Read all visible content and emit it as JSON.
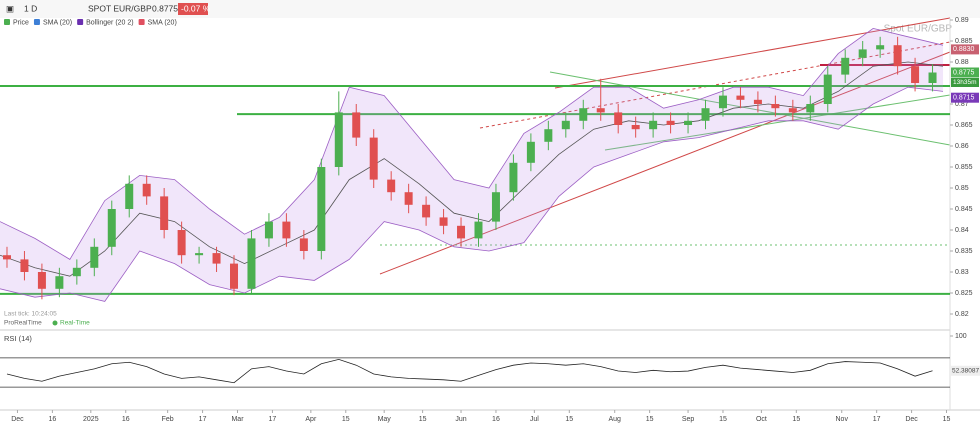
{
  "chart_data": {
    "type": "candlestick",
    "toolbar": {
      "interval": "1 D",
      "symbol": "SPOT EUR/GBP",
      "price": "0.8775",
      "change": "-0.07 %"
    },
    "watermark": "Spot EUR/GBP",
    "last_tick": "Last tick: 10:24:05",
    "source": "ProRealTime",
    "feed": "Real-Time",
    "legend": [
      {
        "name": "Price",
        "color": "#4caf50"
      },
      {
        "name": "SMA (20)",
        "color": "#3d7fd6"
      },
      {
        "name": "Bollinger (20 2)",
        "color": "#6a2fb0"
      },
      {
        "name": "SMA (20)",
        "color": "#e05060"
      }
    ],
    "xlim": [
      0,
      272
    ],
    "xticks": [
      {
        "value": 5,
        "label": "Dec"
      },
      {
        "value": 15,
        "label": "16"
      },
      {
        "value": 26,
        "label": "2025"
      },
      {
        "value": 36,
        "label": "16"
      },
      {
        "value": 48,
        "label": "Feb"
      },
      {
        "value": 58,
        "label": "17"
      },
      {
        "value": 68,
        "label": "Mar"
      },
      {
        "value": 78,
        "label": "17"
      },
      {
        "value": 89,
        "label": "Apr"
      },
      {
        "value": 99,
        "label": "15"
      },
      {
        "value": 110,
        "label": "May"
      },
      {
        "value": 121,
        "label": "15"
      },
      {
        "value": 132,
        "label": "Jun"
      },
      {
        "value": 142,
        "label": "16"
      },
      {
        "value": 153,
        "label": "Jul"
      },
      {
        "value": 163,
        "label": "15"
      },
      {
        "value": 176,
        "label": "Aug"
      },
      {
        "value": 186,
        "label": "15"
      },
      {
        "value": 197,
        "label": "Sep"
      },
      {
        "value": 207,
        "label": "15"
      },
      {
        "value": 218,
        "label": "Oct"
      },
      {
        "value": 228,
        "label": "15"
      },
      {
        "value": 241,
        "label": "Nov"
      },
      {
        "value": 251,
        "label": "17"
      },
      {
        "value": 261,
        "label": "Dec"
      },
      {
        "value": 271,
        "label": "15"
      }
    ],
    "ylim": [
      0.82,
      0.89
    ],
    "yticks": [
      0.89,
      0.885,
      0.88,
      0.87,
      0.865,
      0.86,
      0.855,
      0.85,
      0.845,
      0.84,
      0.835,
      0.83,
      0.825,
      0.82
    ],
    "series": [
      {
        "name": "Price",
        "color_up": "#4caf50",
        "color_down": "#e05050",
        "x": [
          2,
          7,
          12,
          17,
          22,
          27,
          32,
          37,
          42,
          47,
          52,
          57,
          62,
          67,
          72,
          77,
          82,
          87,
          92,
          97,
          102,
          107,
          112,
          117,
          122,
          127,
          132,
          137,
          142,
          147,
          152,
          157,
          162,
          167,
          172,
          177,
          182,
          187,
          192,
          197,
          202,
          207,
          212,
          217,
          222,
          227,
          232,
          237,
          242,
          247,
          252,
          257,
          262,
          267
        ],
        "open": [
          0.834,
          0.833,
          0.83,
          0.826,
          0.829,
          0.831,
          0.836,
          0.845,
          0.851,
          0.848,
          0.84,
          0.834,
          0.8345,
          0.832,
          0.826,
          0.838,
          0.842,
          0.838,
          0.835,
          0.855,
          0.868,
          0.862,
          0.852,
          0.849,
          0.846,
          0.843,
          0.841,
          0.838,
          0.842,
          0.849,
          0.856,
          0.861,
          0.864,
          0.866,
          0.869,
          0.868,
          0.865,
          0.864,
          0.866,
          0.865,
          0.866,
          0.869,
          0.872,
          0.871,
          0.87,
          0.869,
          0.868,
          0.87,
          0.877,
          0.881,
          0.883,
          0.884,
          0.879,
          0.875
        ],
        "high": [
          0.836,
          0.835,
          0.832,
          0.831,
          0.833,
          0.838,
          0.847,
          0.853,
          0.853,
          0.85,
          0.842,
          0.836,
          0.836,
          0.834,
          0.84,
          0.844,
          0.844,
          0.84,
          0.857,
          0.873,
          0.87,
          0.864,
          0.854,
          0.851,
          0.848,
          0.845,
          0.843,
          0.844,
          0.851,
          0.858,
          0.863,
          0.866,
          0.868,
          0.871,
          0.876,
          0.87,
          0.867,
          0.868,
          0.868,
          0.868,
          0.871,
          0.874,
          0.874,
          0.873,
          0.872,
          0.871,
          0.872,
          0.879,
          0.883,
          0.885,
          0.886,
          0.886,
          0.881,
          0.8795
        ],
        "low": [
          0.831,
          0.828,
          0.8235,
          0.824,
          0.827,
          0.829,
          0.834,
          0.843,
          0.846,
          0.838,
          0.832,
          0.832,
          0.83,
          0.8245,
          0.825,
          0.836,
          0.836,
          0.833,
          0.833,
          0.853,
          0.86,
          0.85,
          0.847,
          0.844,
          0.841,
          0.839,
          0.836,
          0.836,
          0.84,
          0.847,
          0.854,
          0.859,
          0.862,
          0.864,
          0.866,
          0.863,
          0.862,
          0.862,
          0.863,
          0.863,
          0.864,
          0.867,
          0.869,
          0.868,
          0.867,
          0.866,
          0.866,
          0.868,
          0.875,
          0.879,
          0.881,
          0.877,
          0.873,
          0.873
        ],
        "close": [
          0.833,
          0.83,
          0.826,
          0.829,
          0.831,
          0.836,
          0.845,
          0.851,
          0.848,
          0.84,
          0.834,
          0.8345,
          0.832,
          0.826,
          0.838,
          0.842,
          0.838,
          0.835,
          0.855,
          0.868,
          0.862,
          0.852,
          0.849,
          0.846,
          0.843,
          0.841,
          0.838,
          0.842,
          0.849,
          0.856,
          0.861,
          0.864,
          0.866,
          0.869,
          0.868,
          0.865,
          0.864,
          0.866,
          0.865,
          0.866,
          0.869,
          0.872,
          0.871,
          0.87,
          0.869,
          0.868,
          0.87,
          0.877,
          0.881,
          0.883,
          0.884,
          0.879,
          0.875,
          0.8775
        ]
      },
      {
        "name": "Bollinger (20 2)",
        "color": "#9c5fc4",
        "fill": "rgba(190,140,230,0.22)",
        "x": [
          0,
          10,
          20,
          30,
          40,
          50,
          60,
          70,
          80,
          90,
          100,
          110,
          120,
          130,
          140,
          150,
          160,
          170,
          180,
          190,
          200,
          210,
          220,
          230,
          240,
          250,
          260,
          270
        ],
        "middle": [
          0.834,
          0.831,
          0.829,
          0.835,
          0.844,
          0.842,
          0.836,
          0.832,
          0.836,
          0.84,
          0.852,
          0.857,
          0.851,
          0.844,
          0.842,
          0.85,
          0.858,
          0.864,
          0.866,
          0.865,
          0.866,
          0.869,
          0.87,
          0.869,
          0.873,
          0.879,
          0.88,
          0.879
        ],
        "upper": [
          0.842,
          0.838,
          0.833,
          0.847,
          0.853,
          0.852,
          0.845,
          0.839,
          0.843,
          0.852,
          0.874,
          0.872,
          0.862,
          0.852,
          0.85,
          0.863,
          0.868,
          0.874,
          0.874,
          0.869,
          0.871,
          0.874,
          0.874,
          0.872,
          0.882,
          0.888,
          0.886,
          0.884
        ],
        "lower": [
          0.826,
          0.824,
          0.825,
          0.823,
          0.835,
          0.832,
          0.827,
          0.825,
          0.829,
          0.828,
          0.833,
          0.842,
          0.84,
          0.836,
          0.835,
          0.837,
          0.848,
          0.855,
          0.858,
          0.861,
          0.862,
          0.864,
          0.866,
          0.866,
          0.864,
          0.87,
          0.874,
          0.873
        ]
      }
    ],
    "levels": [
      {
        "value": 0.8743,
        "color": "#3cb043"
      },
      {
        "value": 0.8676,
        "color": "#3cb043"
      },
      {
        "value": 0.8248,
        "color": "#3cb043"
      }
    ],
    "price_labels": [
      {
        "value": 0.883,
        "label": "0.8830",
        "color": "#c86070"
      },
      {
        "value": 0.8775,
        "label": "0.8775",
        "color": "#4caf50"
      },
      {
        "value": 0.8715,
        "label": "0.8715",
        "color": "#7a3ab8"
      }
    ],
    "countdown": "13h35m",
    "rsi": {
      "title": "RSI (14)",
      "ylim": [
        0,
        100
      ],
      "yticks": [
        100
      ],
      "levels": [
        70,
        30
      ],
      "color": "#222",
      "values": [
        48,
        42,
        38,
        45,
        50,
        55,
        62,
        64,
        58,
        48,
        42,
        44,
        40,
        36,
        55,
        58,
        52,
        48,
        62,
        68,
        60,
        48,
        44,
        42,
        41,
        40,
        38,
        46,
        54,
        60,
        63,
        62,
        60,
        62,
        58,
        52,
        50,
        53,
        51,
        52,
        57,
        60,
        56,
        54,
        52,
        50,
        53,
        62,
        65,
        64,
        63,
        55,
        45,
        52.38087
      ]
    }
  }
}
